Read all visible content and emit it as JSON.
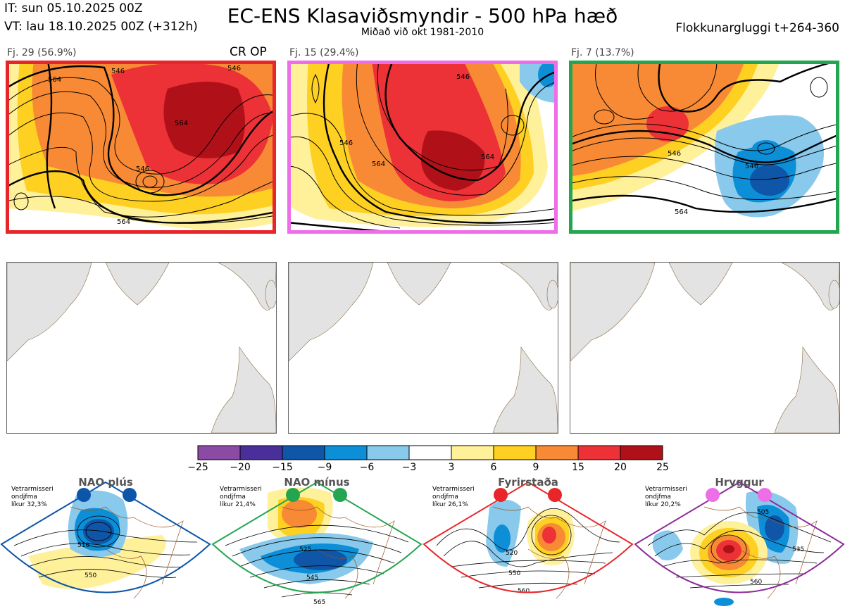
{
  "header": {
    "initial_time": "IT: sun 05.10.2025 00Z",
    "valid_time": "VT: lau 18.10.2025 00Z  (+312h)",
    "title": "EC-ENS Klasaviðsmyndir - 500 hPa hæð",
    "subtitle": "Miðað við okt 1981-2010",
    "cluster_window": "Flokkunargluggi t+264-360"
  },
  "clusters": [
    {
      "label": "Fj. 29 (56.9%)",
      "flag": "CR OP",
      "border_color": "#e8262a"
    },
    {
      "label": "Fj. 15 (29.4%)",
      "flag": "",
      "border_color": "#ee6ee8"
    },
    {
      "label": "Fj. 7 (13.7%)",
      "flag": "",
      "border_color": "#24a650"
    }
  ],
  "contour_labels": {
    "cluster1": [
      "564",
      "546",
      "546",
      "564",
      "546",
      "564"
    ],
    "cluster2": [
      "546",
      "546",
      "564",
      "564"
    ],
    "cluster3": [
      "546",
      "546",
      "564"
    ]
  },
  "chart_data": {
    "type": "heatmap",
    "title": "EC-ENS Klasaviðsmyndir - 500 hPa hæð",
    "colorbar": {
      "ticks": [
        "−25",
        "−20",
        "−15",
        "−9",
        "−6",
        "−3",
        "3",
        "6",
        "9",
        "15",
        "20",
        "25"
      ],
      "colors": [
        "#8b4aa4",
        "#4a2f9a",
        "#0f55a8",
        "#0d8fd8",
        "#88c9ec",
        "#ffffff",
        "#fff09a",
        "#fdd022",
        "#f88a35",
        "#ec3236",
        "#b01119"
      ]
    }
  },
  "regimes": [
    {
      "name": "NAO plús",
      "info_l1": "Vetrarmisseri",
      "info_l2": "ondjfma",
      "info_l3": "líkur 32,3%",
      "color": "#0d55a8",
      "dots": [
        "#0d55a8",
        "#0d55a8"
      ],
      "labels": [
        "510",
        "550"
      ]
    },
    {
      "name": "NAO mínus",
      "info_l1": "Vetrarmisseri",
      "info_l2": "ondjfma",
      "info_l3": "líkur 21,4%",
      "color": "#24a650",
      "dots": [
        "#24a650",
        "#24a650"
      ],
      "labels": [
        "525",
        "545",
        "565"
      ]
    },
    {
      "name": "Fyrirstaða",
      "info_l1": "Vetrarmisseri",
      "info_l2": "ondjfma",
      "info_l3": "líkur 26,1%",
      "color": "#e8262a",
      "dots": [
        "#e8262a",
        "#e8262a"
      ],
      "labels": [
        "520",
        "550",
        "560"
      ]
    },
    {
      "name": "Hryggur",
      "info_l1": "Vetrarmisseri",
      "info_l2": "ondjfma",
      "info_l3": "líkur 20,2%",
      "color": "#8e2a9a",
      "dots": [
        "#ee6ee8",
        "#ee6ee8"
      ],
      "labels": [
        "505",
        "535",
        "560"
      ]
    }
  ]
}
